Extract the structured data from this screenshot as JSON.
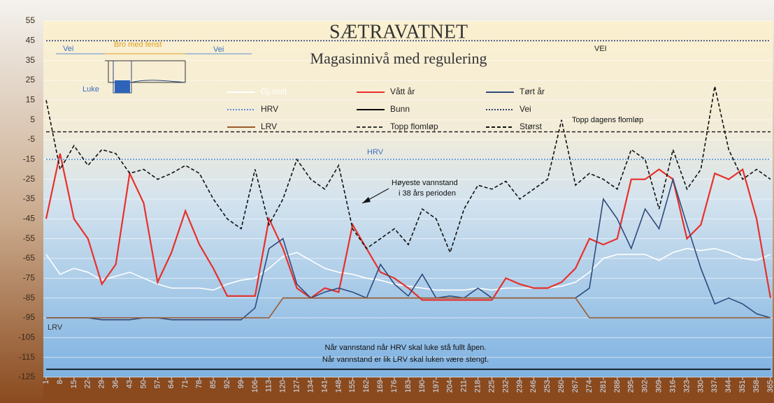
{
  "chart_data": {
    "type": "line",
    "title": "SÆTRAVATNET",
    "subtitle": "Magasinnivå med regulering",
    "annotations": [
      "Vei",
      "Bro med ferist",
      "Vei",
      "Luke",
      "VEI",
      "HRV",
      "LRV",
      "Topp dagens flomløp",
      "Høyeste vannstand",
      "i 38 års perioden",
      "Når vannstand når HRV skal luke stå fullt åpen.",
      "Når vannstand er lik LRV skal luken være stengt."
    ],
    "x": [
      1,
      8,
      15,
      22,
      29,
      36,
      43,
      50,
      57,
      64,
      71,
      78,
      85,
      92,
      99,
      106,
      113,
      120,
      127,
      134,
      141,
      148,
      155,
      162,
      169,
      176,
      183,
      190,
      197,
      204,
      211,
      218,
      225,
      232,
      239,
      246,
      253,
      260,
      267,
      274,
      281,
      288,
      295,
      302,
      309,
      316,
      323,
      330,
      337,
      344,
      351,
      358,
      365
    ],
    "xlim": [
      1,
      365
    ],
    "xticks": [
      1,
      8,
      15,
      22,
      29,
      36,
      43,
      50,
      57,
      64,
      71,
      78,
      85,
      92,
      99,
      106,
      113,
      120,
      127,
      134,
      141,
      148,
      155,
      162,
      169,
      176,
      183,
      190,
      197,
      204,
      211,
      218,
      225,
      232,
      239,
      246,
      253,
      260,
      267,
      274,
      281,
      288,
      295,
      302,
      309,
      316,
      323,
      330,
      337,
      344,
      351,
      358,
      365
    ],
    "ylim": [
      -125,
      55
    ],
    "yticks": [
      55,
      45,
      35,
      25,
      15,
      5,
      -5,
      -15,
      -25,
      -35,
      -45,
      -55,
      -65,
      -75,
      -85,
      -95,
      -105,
      -115,
      -125
    ],
    "grid": true,
    "series": [
      {
        "name": "Gj.snitt",
        "color": "#ffffff",
        "style": "solid",
        "values": [
          -63,
          -73,
          -70,
          -72,
          -76,
          -74,
          -72,
          -75,
          -78,
          -80,
          -80,
          -80,
          -81,
          -78,
          -76,
          -75,
          -70,
          -64,
          -62,
          -66,
          -70,
          -72,
          -73,
          -75,
          -76,
          -78,
          -79,
          -80,
          -81,
          -81,
          -81,
          -80,
          -81,
          -80,
          -80,
          -80,
          -80,
          -79,
          -77,
          -72,
          -65,
          -63,
          -63,
          -63,
          -66,
          -62,
          -60,
          -61,
          -60,
          -62,
          -65,
          -66,
          -63
        ]
      },
      {
        "name": "Vått år",
        "color": "#e8302a",
        "style": "solid",
        "values": [
          -45,
          -12,
          -45,
          -55,
          -78,
          -68,
          -22,
          -37,
          -77,
          -62,
          -41,
          -58,
          -70,
          -84,
          -84,
          -84,
          -45,
          -60,
          -80,
          -85,
          -80,
          -82,
          -48,
          -60,
          -72,
          -75,
          -80,
          -86,
          -86,
          -86,
          -86,
          -86,
          -86,
          -75,
          -78,
          -80,
          -80,
          -77,
          -70,
          -55,
          -58,
          -55,
          -25,
          -25,
          -20,
          -25,
          -55,
          -48,
          -22,
          -25,
          -20,
          -45,
          -85
        ]
      },
      {
        "name": "Tørt år",
        "color": "#2e4a7d",
        "style": "solid",
        "values": [
          -95,
          -95,
          -95,
          -95,
          -96,
          -96,
          -96,
          -95,
          -95,
          -96,
          -96,
          -96,
          -96,
          -96,
          -96,
          -90,
          -60,
          -55,
          -78,
          -85,
          -82,
          -80,
          -82,
          -85,
          -68,
          -78,
          -84,
          -73,
          -85,
          -84,
          -85,
          -80,
          -85,
          -85,
          -85,
          -85,
          -85,
          -85,
          -85,
          -80,
          -35,
          -45,
          -60,
          -40,
          -50,
          -25,
          -48,
          -70,
          -88,
          -85,
          -88,
          -93,
          -95
        ]
      },
      {
        "name": "HRV",
        "color": "#5b8fd6",
        "style": "dotted",
        "values": [
          -15,
          -15,
          -15,
          -15,
          -15,
          -15,
          -15,
          -15,
          -15,
          -15,
          -15,
          -15,
          -15,
          -15,
          -15,
          -15,
          -15,
          -15,
          -15,
          -15,
          -15,
          -15,
          -15,
          -15,
          -15,
          -15,
          -15,
          -15,
          -15,
          -15,
          -15,
          -15,
          -15,
          -15,
          -15,
          -15,
          -15,
          -15,
          -15,
          -15,
          -15,
          -15,
          -15,
          -15,
          -15,
          -15,
          -15,
          -15,
          -15,
          -15,
          -15,
          -15,
          -15
        ]
      },
      {
        "name": "Bunn",
        "color": "#000000",
        "style": "solid",
        "values": [
          -121,
          -121,
          -121,
          -121,
          -121,
          -121,
          -121,
          -121,
          -121,
          -121,
          -121,
          -121,
          -121,
          -121,
          -121,
          -121,
          -121,
          -121,
          -121,
          -121,
          -121,
          -121,
          -121,
          -121,
          -121,
          -121,
          -121,
          -121,
          -121,
          -121,
          -121,
          -121,
          -121,
          -121,
          -121,
          -121,
          -121,
          -121,
          -121,
          -121,
          -121,
          -121,
          -121,
          -121,
          -121,
          -121,
          -121,
          -121,
          -121,
          -121,
          -121,
          -121,
          -121
        ]
      },
      {
        "name": "Vei",
        "color": "#2c3e6b",
        "style": "dotted",
        "values": [
          45,
          45,
          45,
          45,
          45,
          45,
          45,
          45,
          45,
          45,
          45,
          45,
          45,
          45,
          45,
          45,
          45,
          45,
          45,
          45,
          45,
          45,
          45,
          45,
          45,
          45,
          45,
          45,
          45,
          45,
          45,
          45,
          45,
          45,
          45,
          45,
          45,
          45,
          45,
          45,
          45,
          45,
          45,
          45,
          45,
          45,
          45,
          45,
          45,
          45,
          45,
          45,
          45
        ]
      },
      {
        "name": "LRV",
        "color": "#9c5a2c",
        "style": "solid",
        "values": [
          -95,
          -95,
          -95,
          -95,
          -95,
          -95,
          -95,
          -95,
          -95,
          -95,
          -95,
          -95,
          -95,
          -95,
          -95,
          -95,
          -95,
          -85,
          -85,
          -85,
          -85,
          -85,
          -85,
          -85,
          -85,
          -85,
          -85,
          -85,
          -85,
          -85,
          -85,
          -85,
          -85,
          -85,
          -85,
          -85,
          -85,
          -85,
          -85,
          -95,
          -95,
          -95,
          -95,
          -95,
          -95,
          -95,
          -95,
          -95,
          -95,
          -95,
          -95,
          -95,
          -95
        ]
      },
      {
        "name": "Topp flomløp",
        "color": "#333333",
        "style": "dashed",
        "values": [
          -1,
          -1,
          -1,
          -1,
          -1,
          -1,
          -1,
          -1,
          -1,
          -1,
          -1,
          -1,
          -1,
          -1,
          -1,
          -1,
          -1,
          -1,
          -1,
          -1,
          -1,
          -1,
          -1,
          -1,
          -1,
          -1,
          -1,
          -1,
          -1,
          -1,
          -1,
          -1,
          -1,
          -1,
          -1,
          -1,
          -1,
          -1,
          -1,
          -1,
          -1,
          -1,
          -1,
          -1,
          -1,
          -1,
          -1,
          -1,
          -1,
          -1,
          -1,
          -1,
          -1
        ]
      },
      {
        "name": "Størst",
        "color": "#111111",
        "style": "dashed",
        "values": [
          15,
          -20,
          -8,
          -18,
          -10,
          -12,
          -22,
          -20,
          -25,
          -22,
          -18,
          -22,
          -35,
          -45,
          -50,
          -20,
          -48,
          -35,
          -15,
          -25,
          -30,
          -18,
          -50,
          -60,
          -55,
          -50,
          -58,
          -40,
          -45,
          -62,
          -40,
          -28,
          -30,
          -26,
          -35,
          -30,
          -25,
          5,
          -28,
          -22,
          -25,
          -30,
          -10,
          -15,
          -40,
          -10,
          -30,
          -20,
          22,
          -10,
          -25,
          -20,
          -25
        ]
      }
    ]
  }
}
